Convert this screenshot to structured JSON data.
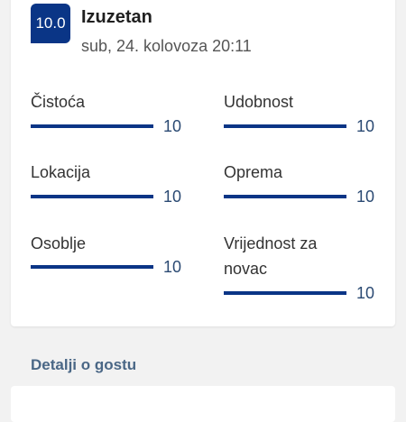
{
  "review": {
    "score": "10.0",
    "verdict": "Izuzetan",
    "date": "sub, 24. kolovoza 20:11"
  },
  "categories": [
    {
      "label": "Čistoća",
      "value": "10",
      "fraction": 1.0
    },
    {
      "label": "Udobnost",
      "value": "10",
      "fraction": 1.0
    },
    {
      "label": "Lokacija",
      "value": "10",
      "fraction": 1.0
    },
    {
      "label": "Oprema",
      "value": "10",
      "fraction": 1.0
    },
    {
      "label": "Osoblje",
      "value": "10",
      "fraction": 1.0
    },
    {
      "label": "Vrijednost za novac",
      "value": "10",
      "fraction": 1.0
    }
  ],
  "guest_details": {
    "title": "Detalji o gostu"
  },
  "colors": {
    "accent": "#0a3586",
    "background": "#f2f2f2"
  }
}
